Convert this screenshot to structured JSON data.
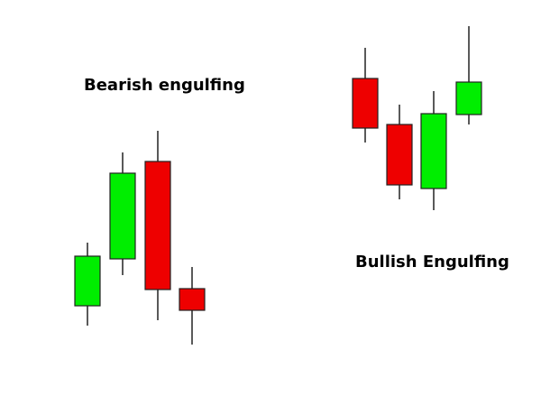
{
  "labels": {
    "bearish": "Bearish engulfing",
    "bullish": "Bullish Engulfing"
  },
  "colors": {
    "bullish_body": "#00ee00",
    "bearish_body": "#ee0000",
    "outline": "#222222",
    "wick": "#222222",
    "background": "#ffffff"
  },
  "chart_data": [
    {
      "type": "candlestick",
      "name": "Bearish engulfing",
      "candles": [
        {
          "direction": "up",
          "open": 110,
          "close": 165,
          "high": 180,
          "low": 88
        },
        {
          "direction": "up",
          "open": 162,
          "close": 257,
          "high": 280,
          "low": 144
        },
        {
          "direction": "down",
          "open": 270,
          "close": 128,
          "high": 304,
          "low": 94
        },
        {
          "direction": "down",
          "open": 129,
          "close": 105,
          "high": 153,
          "low": 67
        }
      ]
    },
    {
      "type": "candlestick",
      "name": "Bullish Engulfing",
      "candles": [
        {
          "direction": "down",
          "open": 362,
          "close": 307,
          "high": 396,
          "low": 291
        },
        {
          "direction": "down",
          "open": 311,
          "close": 244,
          "high": 333,
          "low": 228
        },
        {
          "direction": "up",
          "open": 240,
          "close": 323,
          "high": 348,
          "low": 216
        },
        {
          "direction": "up",
          "open": 322,
          "close": 358,
          "high": 420,
          "low": 311
        }
      ]
    }
  ]
}
